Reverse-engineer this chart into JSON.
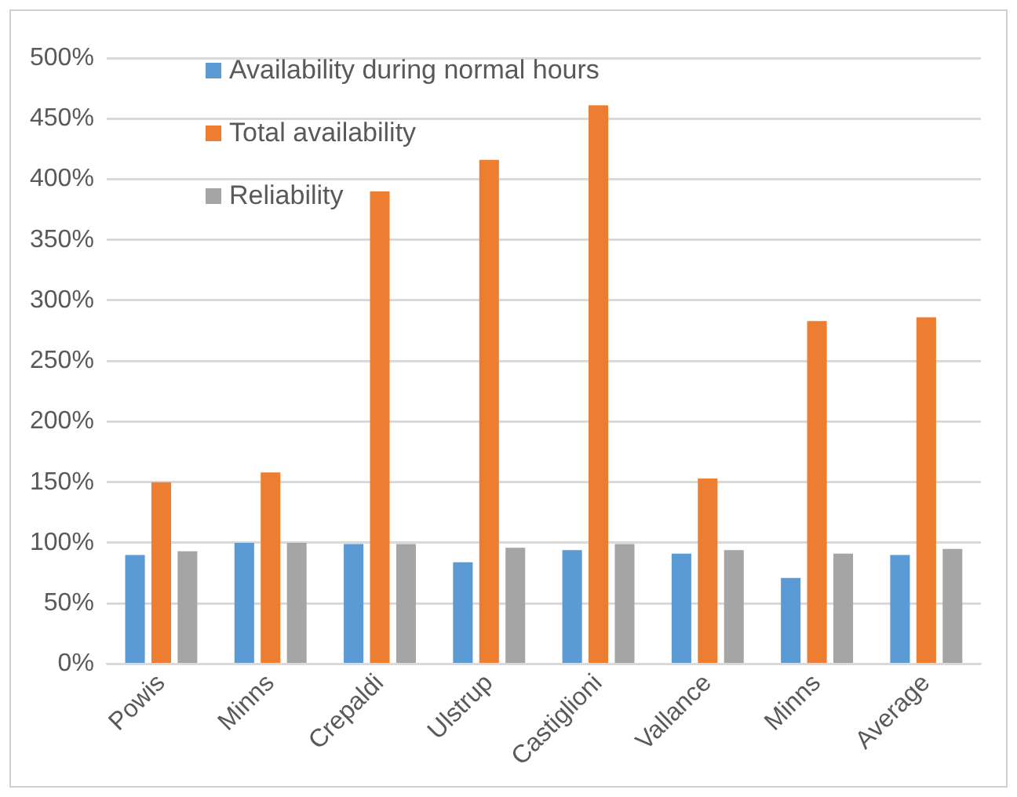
{
  "chart_data": {
    "type": "bar",
    "categories": [
      "Powis",
      "Minns",
      "Crepaldi",
      "Ulstrup",
      "Castiglioni",
      "Vallance",
      "Minns",
      "Average"
    ],
    "series": [
      {
        "name": "Availability during normal hours",
        "color": "#5b9bd5",
        "values": [
          90,
          100,
          99,
          84,
          94,
          91,
          71,
          90
        ]
      },
      {
        "name": "Total availability",
        "color": "#ed7d31",
        "values": [
          150,
          158,
          390,
          416,
          461,
          153,
          283,
          286
        ]
      },
      {
        "name": "Reliability",
        "color": "#a5a5a5",
        "values": [
          93,
          100,
          99,
          96,
          99,
          94,
          91,
          95
        ]
      }
    ],
    "ylim": [
      0,
      500
    ],
    "yticks": [
      {
        "value": 0,
        "label": "0%"
      },
      {
        "value": 50,
        "label": "50%"
      },
      {
        "value": 100,
        "label": "100%"
      },
      {
        "value": 150,
        "label": "150%"
      },
      {
        "value": 200,
        "label": "200%"
      },
      {
        "value": 250,
        "label": "250%"
      },
      {
        "value": 300,
        "label": "300%"
      },
      {
        "value": 350,
        "label": "350%"
      },
      {
        "value": 400,
        "label": "400%"
      },
      {
        "value": 450,
        "label": "450%"
      },
      {
        "value": 500,
        "label": "500%"
      }
    ],
    "grid": "y",
    "legend": "top left"
  }
}
